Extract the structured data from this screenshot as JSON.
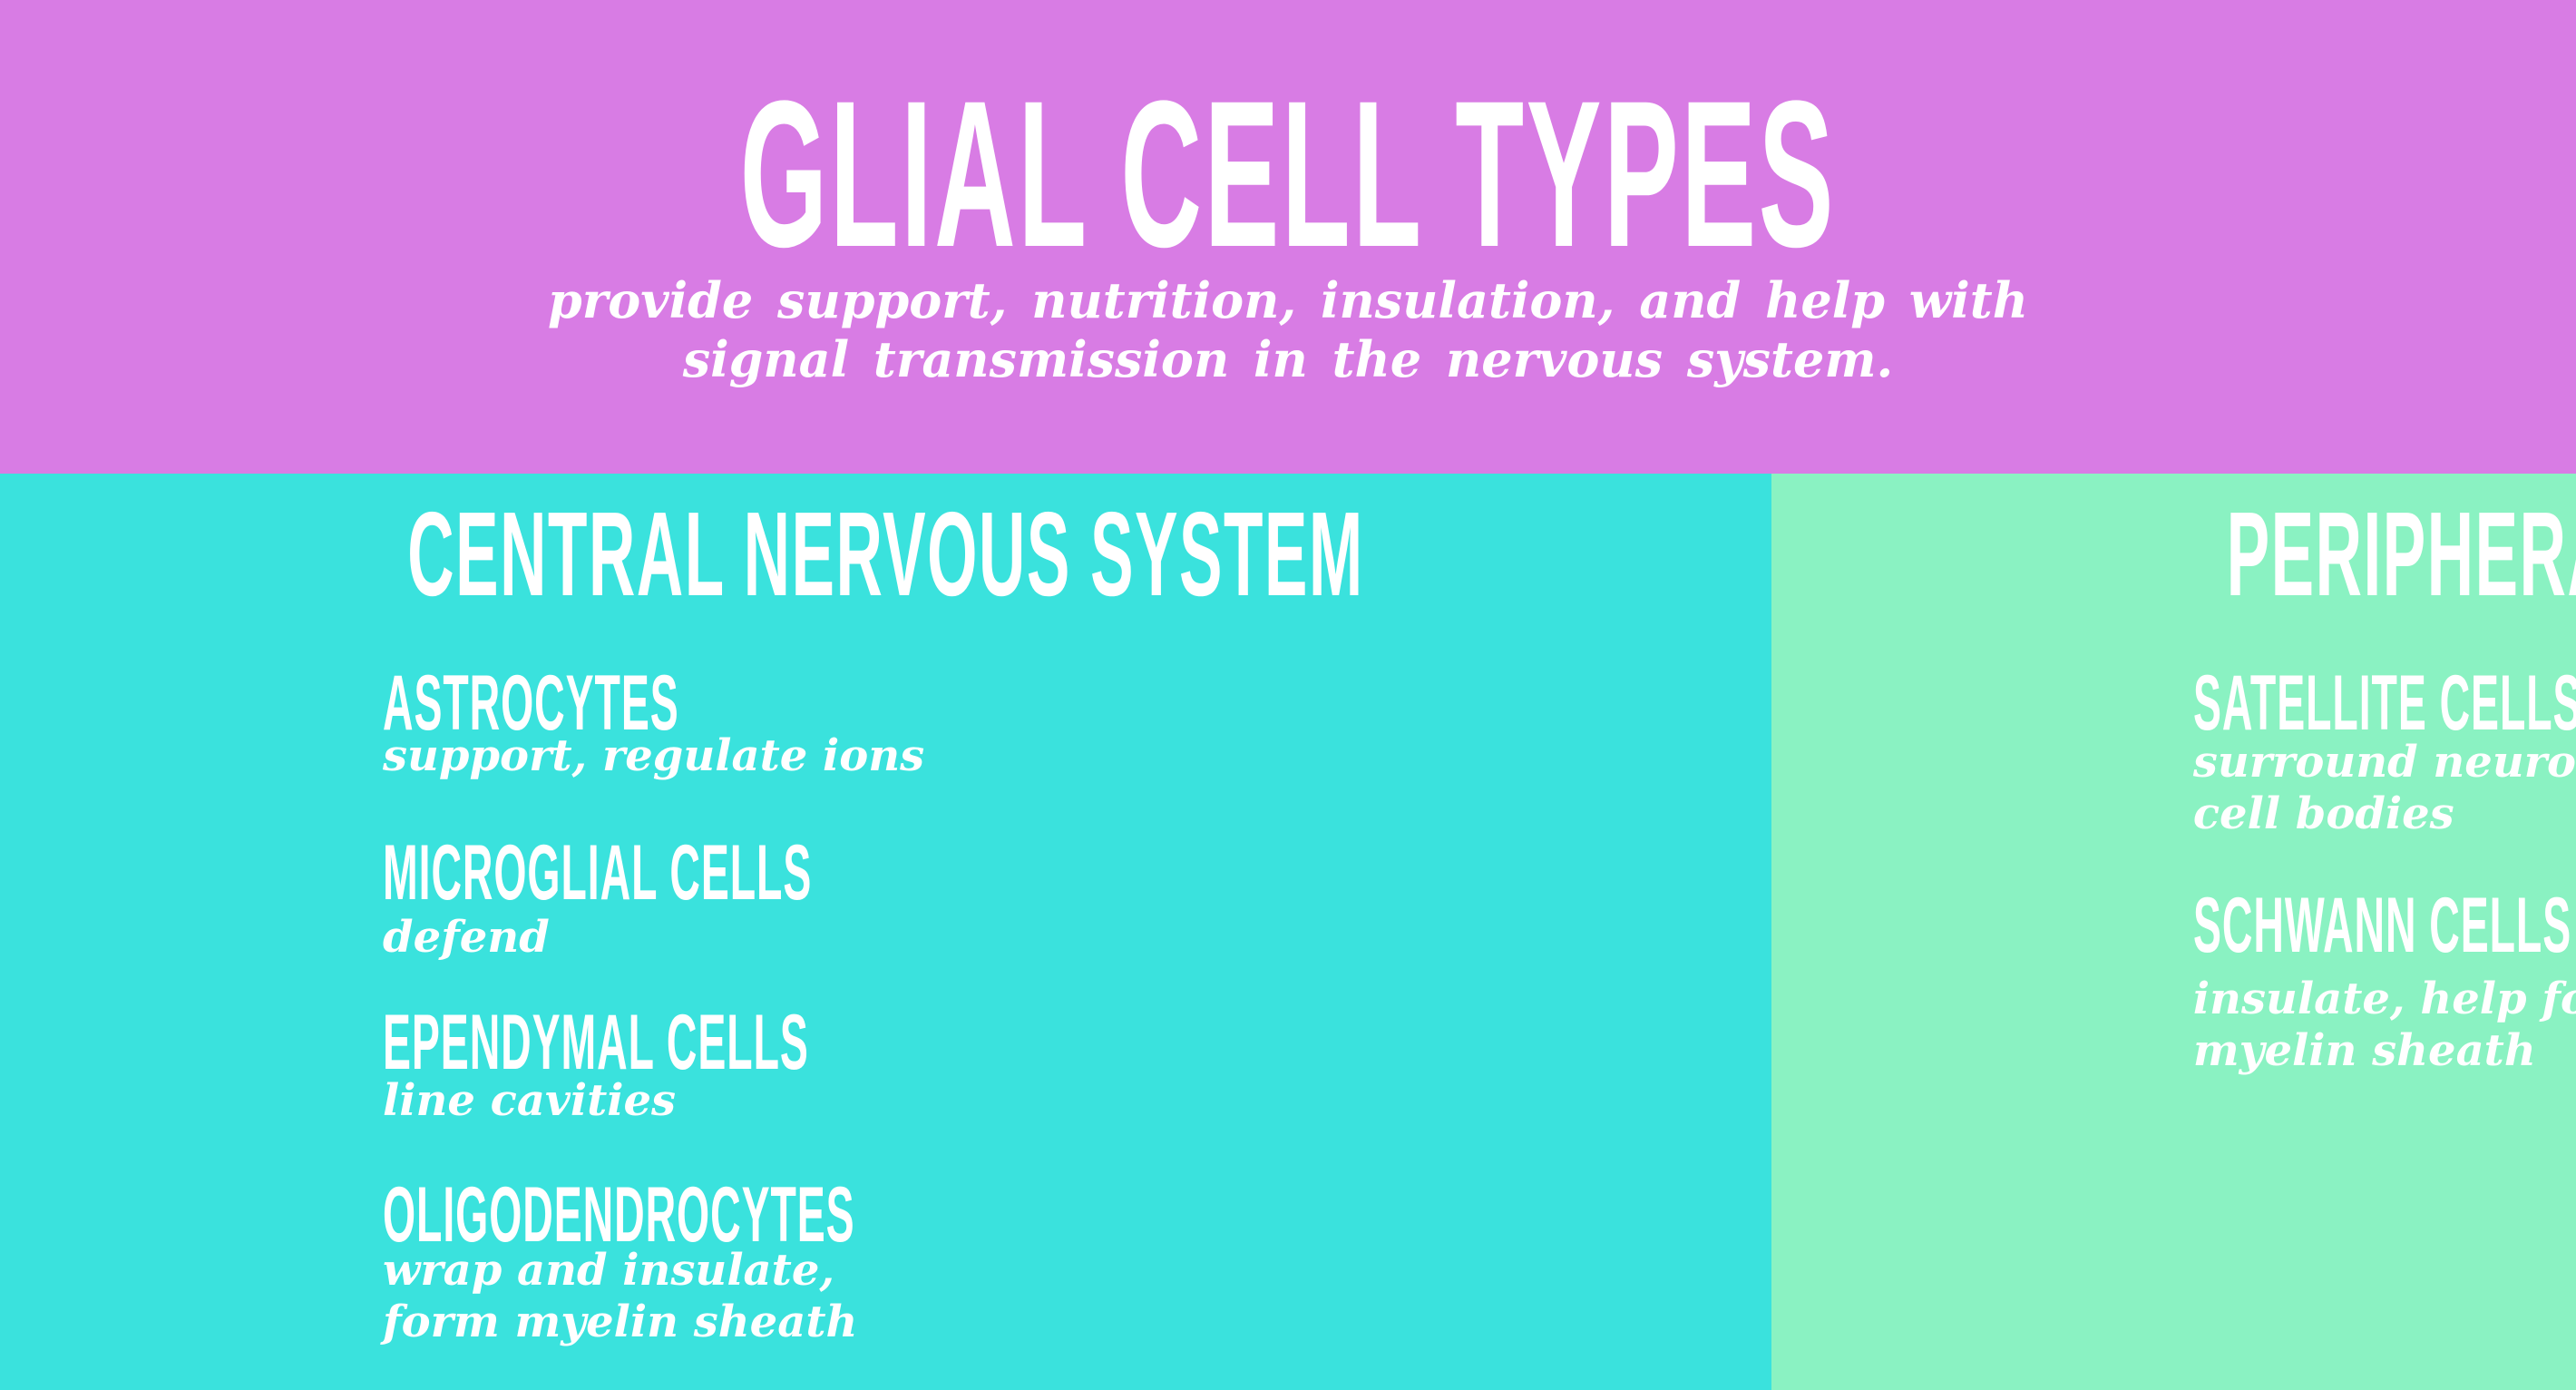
{
  "header": {
    "title": "GLIAL CELL TYPES",
    "subtitle": "provide support, nutrition, insulation, and help with\nsignal transmission in the nervous system."
  },
  "panels": [
    {
      "id": "cns",
      "title": "CENTRAL NERVOUS SYSTEM",
      "items": [
        {
          "name": "ASTROCYTES",
          "desc": "support, regulate ions"
        },
        {
          "name": "MICROGLIAL CELLS",
          "desc": "defend"
        },
        {
          "name": "EPENDYMAL CELLS",
          "desc": "line cavities"
        },
        {
          "name": "OLIGODENDROCYTES",
          "desc": "wrap and insulate,\nform myelin sheath"
        }
      ]
    },
    {
      "id": "pns",
      "title": "PERIPHERAL NERVOUS SYSTEM",
      "items": [
        {
          "name": "SATELLITE CELLS",
          "desc": "surround neuron\ncell bodies"
        },
        {
          "name": "SCHWANN CELLS",
          "desc": "insulate, help form\nmyelin sheath"
        }
      ]
    }
  ],
  "colors": {
    "header_bg": "#d87ce4",
    "cns_bg": "#3ae2dd",
    "pns_bg": "#8af2c2",
    "text": "#ffffff"
  }
}
